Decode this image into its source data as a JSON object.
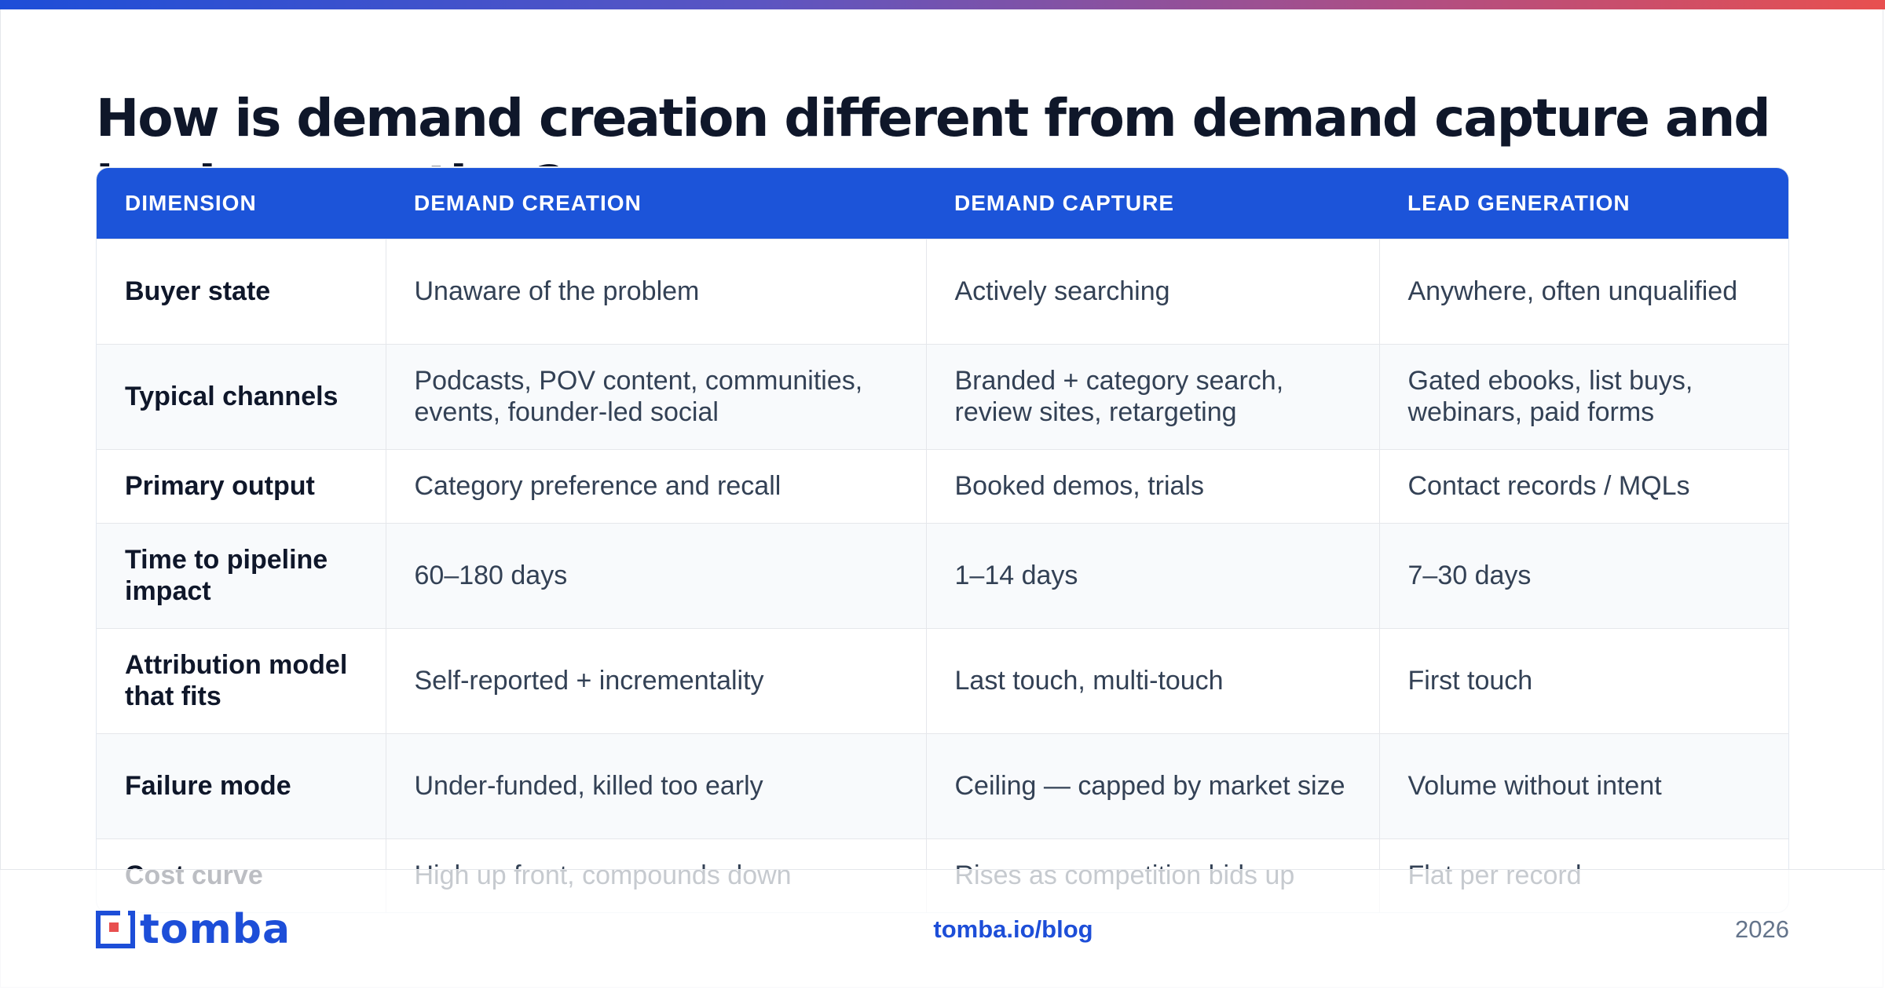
{
  "title": "How is demand creation different from demand capture and lead generation?",
  "table": {
    "headers": [
      "DIMENSION",
      "DEMAND CREATION",
      "DEMAND CAPTURE",
      "LEAD GENERATION"
    ],
    "rows": [
      [
        "Buyer state",
        "Unaware of the problem",
        "Actively searching",
        "Anywhere, often unqualified"
      ],
      [
        "Typical channels",
        "Podcasts, POV content, communities, events, founder-led social",
        "Branded + category search, review sites, retargeting",
        "Gated ebooks, list buys, webinars, paid forms"
      ],
      [
        "Primary output",
        "Category preference and recall",
        "Booked demos, trials",
        "Contact records / MQLs"
      ],
      [
        "Time to pipeline impact",
        "60–180 days",
        "1–14 days",
        "7–30 days"
      ],
      [
        "Attribution model that fits",
        "Self-reported + incrementality",
        "Last touch, multi-touch",
        "First touch"
      ],
      [
        "Failure mode",
        "Under-funded, killed too early",
        "Ceiling — capped by market size",
        "Volume without intent"
      ],
      [
        "Cost curve",
        "High up front, compounds down",
        "Rises as competition bids up",
        "Flat per record"
      ]
    ]
  },
  "footer": {
    "logo_text": "tomba",
    "link": "tomba.io/blog",
    "year": "2026"
  },
  "colors": {
    "accent": "#1c54d9",
    "title": "#0f172a",
    "body_text": "#334155",
    "gradient_start": "#1d4ed8",
    "gradient_end": "#e84f4f"
  }
}
